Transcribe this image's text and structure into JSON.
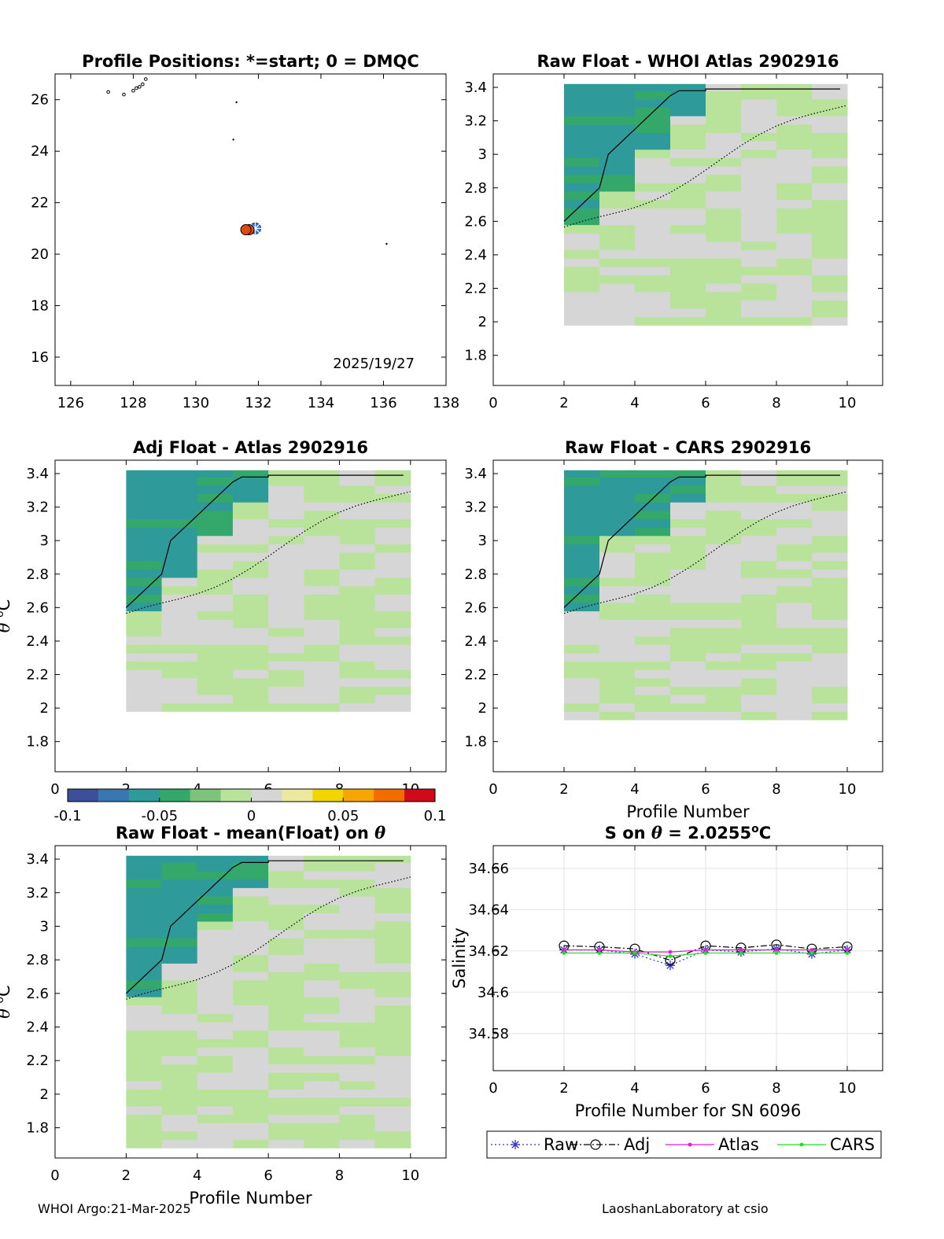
{
  "footer": {
    "left": "WHOI Argo:21-Mar-2025",
    "right": "LaoshanLaboratory at csio"
  },
  "colorbar": {
    "ticks": [
      "-0.1",
      "-0.05",
      "0",
      "0.05",
      "0.1"
    ],
    "range": [
      -0.1,
      0.1
    ],
    "colors": [
      "#3b4f9a",
      "#3a77b0",
      "#2f9a9a",
      "#34a86a",
      "#7cc47a",
      "#b9e39a",
      "#d6d6d6",
      "#ece8a0",
      "#f2d400",
      "#f7a500",
      "#f36c00",
      "#d10a1a"
    ]
  },
  "chart_data": [
    {
      "type": "scatter",
      "title": "Profile Positions: *=start; 0 = DMQC",
      "xlim": [
        125.5,
        138
      ],
      "ylim": [
        14.9,
        27
      ],
      "xticks": [
        "126",
        "128",
        "130",
        "132",
        "134",
        "136",
        "138"
      ],
      "yticks": [
        "16",
        "18",
        "20",
        "22",
        "24",
        "26"
      ],
      "annotation": "2025/19/27",
      "points": [
        {
          "lon": 131.9,
          "lat": 21.0,
          "marker": "start"
        },
        {
          "lon": 131.7,
          "lat": 20.95
        },
        {
          "lon": 131.6,
          "lat": 20.95
        }
      ]
    },
    {
      "type": "heatmap",
      "title": "Raw Float - WHOI Atlas  2902916",
      "xlim": [
        0,
        11
      ],
      "ylim": [
        1.62,
        3.48
      ],
      "xticks": [
        "0",
        "2",
        "4",
        "6",
        "8",
        "10"
      ],
      "yticks": [
        "1.8",
        "2",
        "2.2",
        "2.4",
        "2.6",
        "2.8",
        "3",
        "3.2",
        "3.4"
      ],
      "xlabel": "",
      "ylabel": "",
      "profiles": [
        2,
        3,
        4,
        5,
        6,
        7,
        8,
        9,
        10
      ],
      "theta_range": [
        1.98,
        3.42
      ]
    },
    {
      "type": "heatmap",
      "title": "Adj Float - Atlas  2902916",
      "xlim": [
        0,
        11
      ],
      "ylim": [
        1.62,
        3.48
      ],
      "xticks": [
        "0",
        "2",
        "4",
        "6",
        "8",
        "10"
      ],
      "yticks": [
        "1.8",
        "2",
        "2.2",
        "2.4",
        "2.6",
        "2.8",
        "3",
        "3.2",
        "3.4"
      ],
      "xlabel": "",
      "ylabel": "θ °C",
      "profiles": [
        2,
        3,
        4,
        5,
        6,
        7,
        8,
        9,
        10
      ],
      "theta_range": [
        1.98,
        3.42
      ]
    },
    {
      "type": "heatmap",
      "title": "Raw Float - CARS  2902916",
      "xlim": [
        0,
        11
      ],
      "ylim": [
        1.62,
        3.48
      ],
      "xticks": [
        "0",
        "2",
        "4",
        "6",
        "8",
        "10"
      ],
      "yticks": [
        "1.8",
        "2",
        "2.2",
        "2.4",
        "2.6",
        "2.8",
        "3",
        "3.2",
        "3.4"
      ],
      "xlabel": "Profile Number",
      "ylabel": "",
      "profiles": [
        2,
        3,
        4,
        5,
        6,
        7,
        8,
        9,
        10
      ],
      "theta_range": [
        1.93,
        3.42
      ]
    },
    {
      "type": "heatmap",
      "title": "Raw Float - mean(Float) on θ",
      "xlim": [
        0,
        11
      ],
      "ylim": [
        1.62,
        3.48
      ],
      "xticks": [
        "0",
        "2",
        "4",
        "6",
        "8",
        "10"
      ],
      "yticks": [
        "1.8",
        "2",
        "2.2",
        "2.4",
        "2.6",
        "2.8",
        "3",
        "3.2",
        "3.4"
      ],
      "xlabel": "Profile Number",
      "ylabel": "θ °C",
      "profiles": [
        2,
        3,
        4,
        5,
        6,
        7,
        8,
        9,
        10
      ],
      "theta_range": [
        1.68,
        3.42
      ]
    },
    {
      "type": "line",
      "title": "S on θ = 2.0255°C",
      "xlabel": "Profile Number for SN 6096",
      "ylabel": "Salinity",
      "xlim": [
        0,
        11
      ],
      "ylim": [
        34.562,
        34.671
      ],
      "xticks": [
        "0",
        "2",
        "4",
        "6",
        "8",
        "10"
      ],
      "yticks": [
        "34.58",
        "34.6",
        "34.62",
        "34.64",
        "34.66"
      ],
      "grid": true,
      "legend": "bottom",
      "x": [
        2,
        3,
        4,
        5,
        6,
        7,
        8,
        9,
        10
      ],
      "series": [
        {
          "name": "Raw",
          "color": "#3333cc",
          "values": [
            34.6205,
            34.6205,
            34.6185,
            34.613,
            34.6205,
            34.6195,
            34.621,
            34.6185,
            34.6205
          ]
        },
        {
          "name": "Adj",
          "color": "#000000",
          "values": [
            34.6225,
            34.622,
            34.621,
            34.6155,
            34.6225,
            34.6215,
            34.623,
            34.621,
            34.622
          ]
        },
        {
          "name": "Atlas",
          "color": "#e01ee0",
          "values": [
            34.6205,
            34.6205,
            34.6195,
            34.6195,
            34.6205,
            34.6205,
            34.6205,
            34.6205,
            34.6205
          ]
        },
        {
          "name": "CARS",
          "color": "#22dd22",
          "values": [
            34.619,
            34.619,
            34.619,
            34.6175,
            34.619,
            34.619,
            34.619,
            34.619,
            34.619
          ]
        }
      ]
    }
  ]
}
